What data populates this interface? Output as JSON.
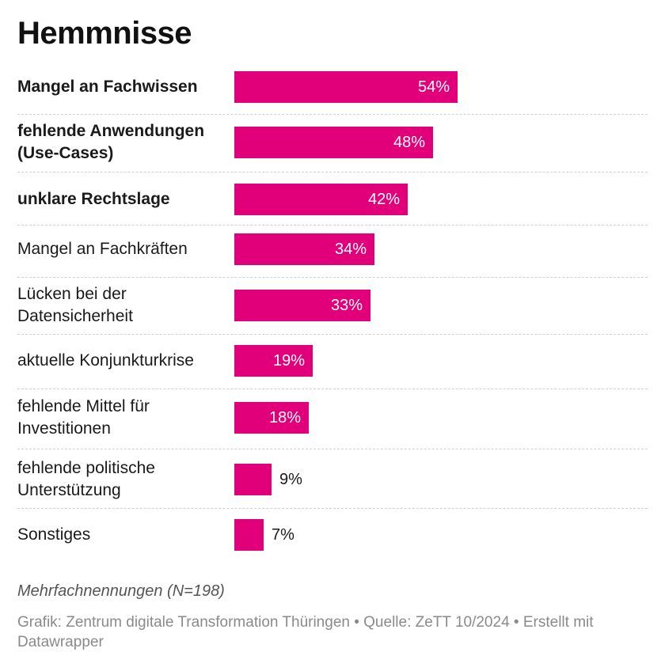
{
  "chart_data": {
    "type": "bar",
    "orientation": "horizontal",
    "title": "Hemmnisse",
    "categories": [
      "Mangel an Fachwissen",
      "fehlende Anwendungen (Use-Cases)",
      "unklare Rechtslage",
      "Mangel an Fachkräften",
      "Lücken bei der Datensicherheit",
      "aktuelle Konjunkturkrise",
      "fehlende Mittel für Investitionen",
      "fehlende politische Unterstützung",
      "Sonstiges"
    ],
    "label_lines": [
      [
        "Mangel an Fachwissen"
      ],
      [
        "fehlende Anwendungen",
        "(Use-Cases)"
      ],
      [
        "unklare Rechtslage"
      ],
      [
        "Mangel an Fachkräften"
      ],
      [
        "Lücken bei der",
        "Datensicherheit"
      ],
      [
        "aktuelle Konjunkturkrise"
      ],
      [
        "fehlende Mittel für",
        "Investitionen"
      ],
      [
        "fehlende politische",
        "Unterstützung"
      ],
      [
        "Sonstiges"
      ]
    ],
    "bold_categories": [
      true,
      true,
      true,
      false,
      false,
      false,
      false,
      false,
      false
    ],
    "values": [
      54,
      48,
      42,
      34,
      33,
      19,
      18,
      9,
      7
    ],
    "value_labels": [
      "54%",
      "48%",
      "42%",
      "34%",
      "33%",
      "19%",
      "18%",
      "9%",
      "7%"
    ],
    "unit": "%",
    "xlim": [
      0,
      100
    ],
    "bar_color": "#e2007a",
    "grid": false
  },
  "note": "Mehrfachnennungen (N=198)",
  "source": "Grafik: Zentrum digitale Transformation Thüringen • Quelle: ZeTT 10/2024 • Erstellt mit Datawrapper"
}
